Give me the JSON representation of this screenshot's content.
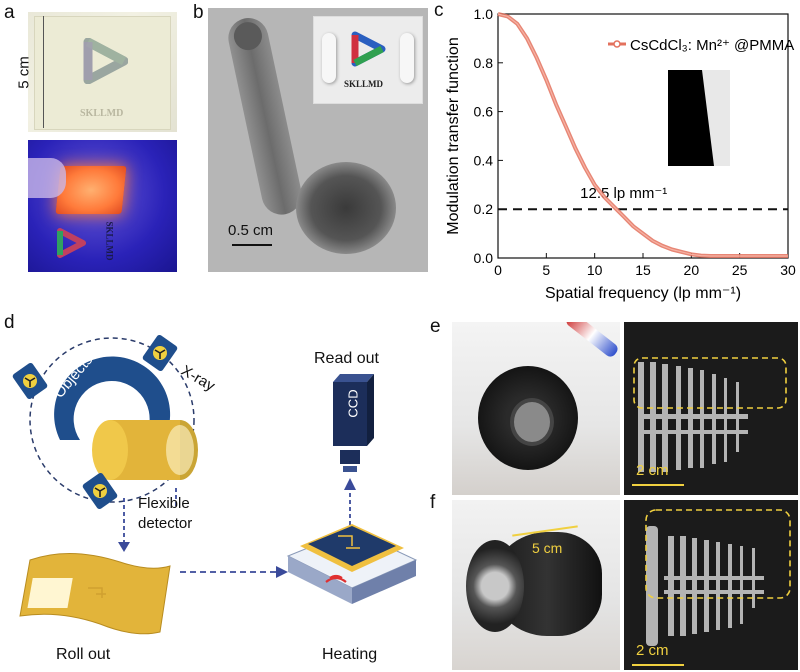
{
  "panel_labels": {
    "a": "a",
    "b": "b",
    "c": "c",
    "d": "d",
    "e": "e",
    "f": "f"
  },
  "panel_a": {
    "scale_label": "5 cm",
    "logo_text": "SKLLMD",
    "logo_text_uv": "SKLLMD"
  },
  "panel_b": {
    "scale_label": "0.5 cm",
    "logo_text": "SKLLMD"
  },
  "panel_d": {
    "objects_label": "Objects",
    "xray_label": "X-ray",
    "detector_label_line1": "Flexible",
    "detector_label_line2": "detector",
    "readout_label": "Read out",
    "ccd_label": "CCD",
    "rollout_label": "Roll out",
    "heating_label": "Heating"
  },
  "panel_e": {
    "scale_label": "2 cm"
  },
  "panel_f": {
    "scale_label": "2 cm",
    "dimension_label": "5 cm"
  },
  "colors": {
    "curve": "#e3715d",
    "dashed": "#111111",
    "detector": "#e2b43a",
    "objects": "#1f4e8c",
    "yellow_box": "#f0d040"
  },
  "chart_data": {
    "type": "line",
    "xlabel": "Spatial frequency (lp mm⁻¹)",
    "ylabel": "Modulation transfer function",
    "xlim": [
      0,
      30
    ],
    "ylim": [
      0,
      1.0
    ],
    "xticks": [
      0,
      5,
      10,
      15,
      20,
      25,
      30
    ],
    "yticks": [
      0.0,
      0.2,
      0.4,
      0.6,
      0.8,
      1.0
    ],
    "xtick_labels": [
      "0",
      "5",
      "10",
      "15",
      "20",
      "25",
      "30"
    ],
    "ytick_labels": [
      "0.0",
      "0.2",
      "0.4",
      "0.6",
      "0.8",
      "1.0"
    ],
    "legend": "top-right",
    "series": [
      {
        "name": "CsCdCl₃: Mn²⁺ @PMMA",
        "x": [
          0,
          1,
          2,
          3,
          4,
          5,
          6,
          7,
          8,
          9,
          10,
          11,
          12,
          13,
          14,
          15,
          16,
          17,
          18,
          19,
          20,
          21,
          22,
          24,
          26,
          28,
          30
        ],
        "y": [
          1.0,
          0.99,
          0.96,
          0.9,
          0.82,
          0.73,
          0.63,
          0.54,
          0.45,
          0.37,
          0.3,
          0.25,
          0.21,
          0.17,
          0.13,
          0.1,
          0.07,
          0.05,
          0.035,
          0.025,
          0.015,
          0.01,
          0.008,
          0.008,
          0.008,
          0.008,
          0.008
        ]
      }
    ],
    "reference_line": {
      "y": 0.2
    },
    "annotation": "12.5 lp mm⁻¹"
  }
}
